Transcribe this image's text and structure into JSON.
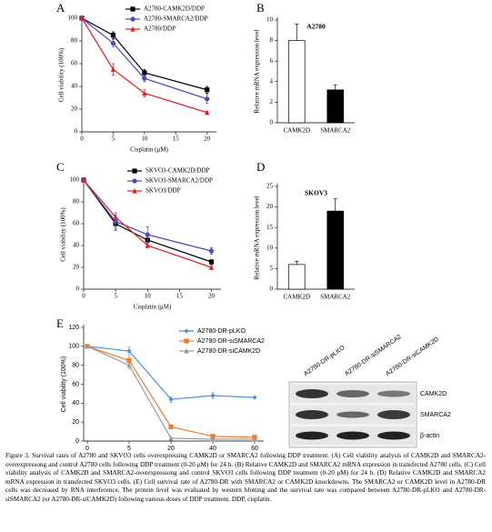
{
  "chart_data": [
    {
      "panel_label": "A",
      "type": "line",
      "xlabel": "Cisplatin (μM)",
      "ylabel": "Cell viability (100%)",
      "x": [
        0,
        5,
        10,
        20
      ],
      "xlim": [
        0,
        21.5
      ],
      "xticks": [
        0,
        5,
        10,
        15,
        20
      ],
      "ylim": [
        0,
        100
      ],
      "yticks": [
        0,
        20,
        40,
        60,
        80,
        100
      ],
      "legend": "top-right",
      "series": [
        {
          "name": "A2780-CAMK2D/DDP",
          "color": "#000000",
          "marker": "square",
          "values": [
            100,
            85,
            52,
            37
          ],
          "errors": [
            1,
            3,
            3,
            3
          ]
        },
        {
          "name": "A2780-SMARCA2/DDP",
          "color": "#4a4ab8",
          "marker": "circle",
          "values": [
            100,
            78,
            47,
            29
          ],
          "errors": [
            1,
            3,
            3,
            4
          ]
        },
        {
          "name": "A2780/DDP",
          "color": "#e02020",
          "marker": "triangle",
          "values": [
            100,
            55,
            34,
            17
          ],
          "errors": [
            1,
            5,
            3,
            1
          ]
        }
      ]
    },
    {
      "panel_label": "B",
      "type": "bar",
      "title": "A2780",
      "ylabel": "Relative mRNA expression level",
      "categories": [
        "CAMK2D",
        "SMARCA2"
      ],
      "values": [
        8.0,
        3.2
      ],
      "errors": [
        1.6,
        0.5
      ],
      "colors": [
        "#ffffff",
        "#000000"
      ],
      "ylim": [
        0,
        10
      ],
      "yticks": [
        0,
        2,
        4,
        6,
        8,
        10
      ]
    },
    {
      "panel_label": "C",
      "type": "line",
      "xlabel": "Cisplatin (μM)",
      "ylabel": "Cell viability (100%)",
      "x": [
        0,
        5,
        10,
        20
      ],
      "xlim": [
        0,
        21.5
      ],
      "xticks": [
        0,
        5,
        10,
        15,
        20
      ],
      "ylim": [
        0,
        100
      ],
      "yticks": [
        0,
        20,
        40,
        60,
        80,
        100
      ],
      "legend": "top-right",
      "series": [
        {
          "name": "SKVO3-CAMK2D/DDP",
          "color": "#000000",
          "marker": "square",
          "values": [
            100,
            60,
            45,
            25
          ],
          "errors": [
            2,
            6,
            5,
            2
          ]
        },
        {
          "name": "SKVO3-SMARCA2/DDP",
          "color": "#4a4ab8",
          "marker": "circle",
          "values": [
            100,
            62,
            50,
            35
          ],
          "errors": [
            2,
            6,
            7,
            3
          ]
        },
        {
          "name": "SKVO3/DDP",
          "color": "#e02020",
          "marker": "triangle",
          "values": [
            100,
            66,
            40,
            20
          ],
          "errors": [
            2,
            4,
            2,
            2
          ]
        }
      ]
    },
    {
      "panel_label": "D",
      "type": "bar",
      "title": "SKOV3",
      "ylabel": "Relative mRNA expression level",
      "categories": [
        "CAMK2D",
        "SMARCA2"
      ],
      "values": [
        6,
        19
      ],
      "errors": [
        0.8,
        3
      ],
      "colors": [
        "#ffffff",
        "#000000"
      ],
      "ylim": [
        0,
        25
      ],
      "yticks": [
        0,
        5,
        10,
        15,
        20,
        25
      ]
    },
    {
      "panel_label": "E",
      "type": "line",
      "xlabel": "Cisplatin (μM)",
      "ylabel": "Cell viability (100%)",
      "categories": [
        "0",
        "5",
        "20",
        "40",
        "60"
      ],
      "ylim": [
        0,
        120
      ],
      "yticks": [
        0,
        20,
        40,
        60,
        80,
        100,
        120
      ],
      "legend": "top-right",
      "series": [
        {
          "name": "A2780-DR-pLKO",
          "color": "#4a8fd6",
          "marker": "diamond",
          "values": [
            100,
            95,
            44,
            48,
            46
          ],
          "errors": [
            1,
            4,
            3,
            3,
            1
          ]
        },
        {
          "name": "A2780-DR-siSMARCA2",
          "color": "#ef7a2a",
          "marker": "square",
          "values": [
            100,
            85,
            15,
            5,
            4
          ],
          "errors": [
            1,
            4,
            1,
            2,
            2
          ]
        },
        {
          "name": "A2780-DR-siCAMK2D",
          "color": "#9a9a9a",
          "marker": "triangle",
          "values": [
            100,
            80,
            3,
            2,
            2
          ],
          "errors": [
            1,
            4,
            1,
            1,
            1
          ]
        }
      ]
    }
  ],
  "blot": {
    "columns": [
      "A2780-DR-pLKO",
      "A2780-DR-siSMARCA2",
      "A2780-DR-siCAMK2D"
    ],
    "rows": [
      "CAMK2D",
      "SMARCA2",
      "β-actin"
    ]
  },
  "caption": "Figure 3. Survival rates of A2780 and SKVO3 cells overexpressing CAMK2D or SMARCA2 following DDP treatment. (A) Cell viability analysis of CAMK2D and SMARCA2-overexpressong and control A2780 cells following DDP treatment (0-20 μM) for 24 h. (B) Relative CAMK2D and SMARCA2 mRNA expression in transfected A2780 cells. (C) Cell viability analysis of CAMK2D and SMARCA2-overexpressong and control SKVO3 cells following DDP treatment (0-20 μM) for 24 h. (D) Relative CAMK2D and SMARCA2 mRNA expression in transfected SKVO3 cells. (E) Cell survival rate of A2780-DR with SMARCA2 or CAMK2D knockdowns. The SMARCA2 or CAMK2D level in A2780-DR cells was decreased by RNA interference. The protein level was evaluated by western blotting and the survival rate was compared between A2780-DR-pLKO and A2780-DR-siSMARCA2 (or A2780-DR-siCAMK2D) following various doses of DDP treatment. DDP, cisplatin."
}
